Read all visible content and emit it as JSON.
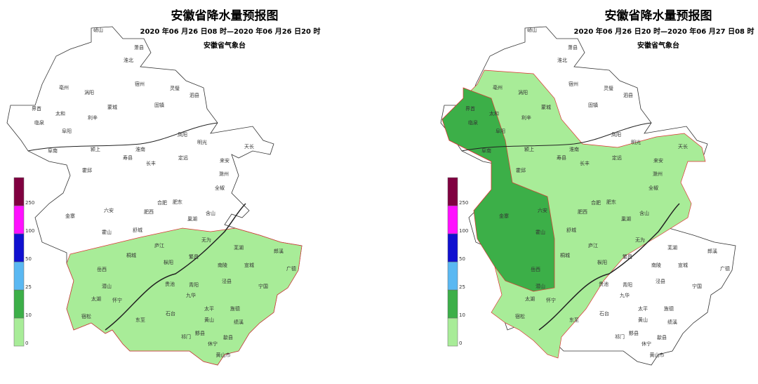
{
  "maps": [
    {
      "title": "安徽省降水量预报图",
      "time": "2020 年06 月26 日08 时—2020 年06 月26 日20 时",
      "issuer": "安徽省气象台",
      "legend": [
        0,
        10,
        25,
        50,
        100,
        250
      ],
      "cities": [
        "砀山",
        "萧县",
        "淮北",
        "亳州",
        "涡阳",
        "宿州",
        "灵璧",
        "泗县",
        "界首",
        "太和",
        "利辛",
        "蒙城",
        "固镇",
        "临泉",
        "阜阳",
        "凤阳",
        "明光",
        "天长",
        "阜南",
        "颍上",
        "淮南",
        "寿县",
        "长丰",
        "定远",
        "来安",
        "滁州",
        "霍邱",
        "全椒",
        "六安",
        "合肥",
        "肥东",
        "金寨",
        "肥西",
        "含山",
        "舒城",
        "霍山",
        "巢湖",
        "庐江",
        "无为",
        "芜湖",
        "郎溪",
        "岳西",
        "桐城",
        "枞阳",
        "南陵",
        "宣城",
        "广德",
        "繁昌",
        "潜山",
        "太湖",
        "怀宁",
        "贵池",
        "青阳",
        "泾县",
        "宁国",
        "九华",
        "宿松",
        "东至",
        "石台",
        "太平",
        "旌德",
        "黄山",
        "绩溪",
        "祁门",
        "黟县",
        "歙县",
        "休宁",
        "黄山市"
      ]
    },
    {
      "title": "安徽省降水量预报图",
      "time": "2020 年06 月26 日20 时—2020 年06 月27 日08 时",
      "issuer": "安徽省气象台",
      "legend": [
        0,
        10,
        25,
        50,
        100,
        250
      ],
      "cities": [
        "砀山",
        "萧县",
        "淮北",
        "亳州",
        "涡阳",
        "宿州",
        "灵璧",
        "泗县",
        "界首",
        "太和",
        "利辛",
        "蒙城",
        "固镇",
        "临泉",
        "阜阳",
        "凤阳",
        "明光",
        "天长",
        "阜南",
        "颍上",
        "淮南",
        "寿县",
        "长丰",
        "定远",
        "来安",
        "滁州",
        "霍邱",
        "全椒",
        "六安",
        "合肥",
        "肥东",
        "金寨",
        "肥西",
        "含山",
        "舒城",
        "霍山",
        "巢湖",
        "庐江",
        "无为",
        "芜湖",
        "郎溪",
        "岳西",
        "桐城",
        "枞阳",
        "南陵",
        "宣城",
        "广德",
        "繁昌",
        "潜山",
        "太湖",
        "怀宁",
        "贵池",
        "青阳",
        "泾县",
        "宁国",
        "九华",
        "宿松",
        "东至",
        "石台",
        "太平",
        "旌德",
        "黄山",
        "绩溪",
        "祁门",
        "黟县",
        "歙县",
        "休宁",
        "黄山市"
      ]
    }
  ]
}
